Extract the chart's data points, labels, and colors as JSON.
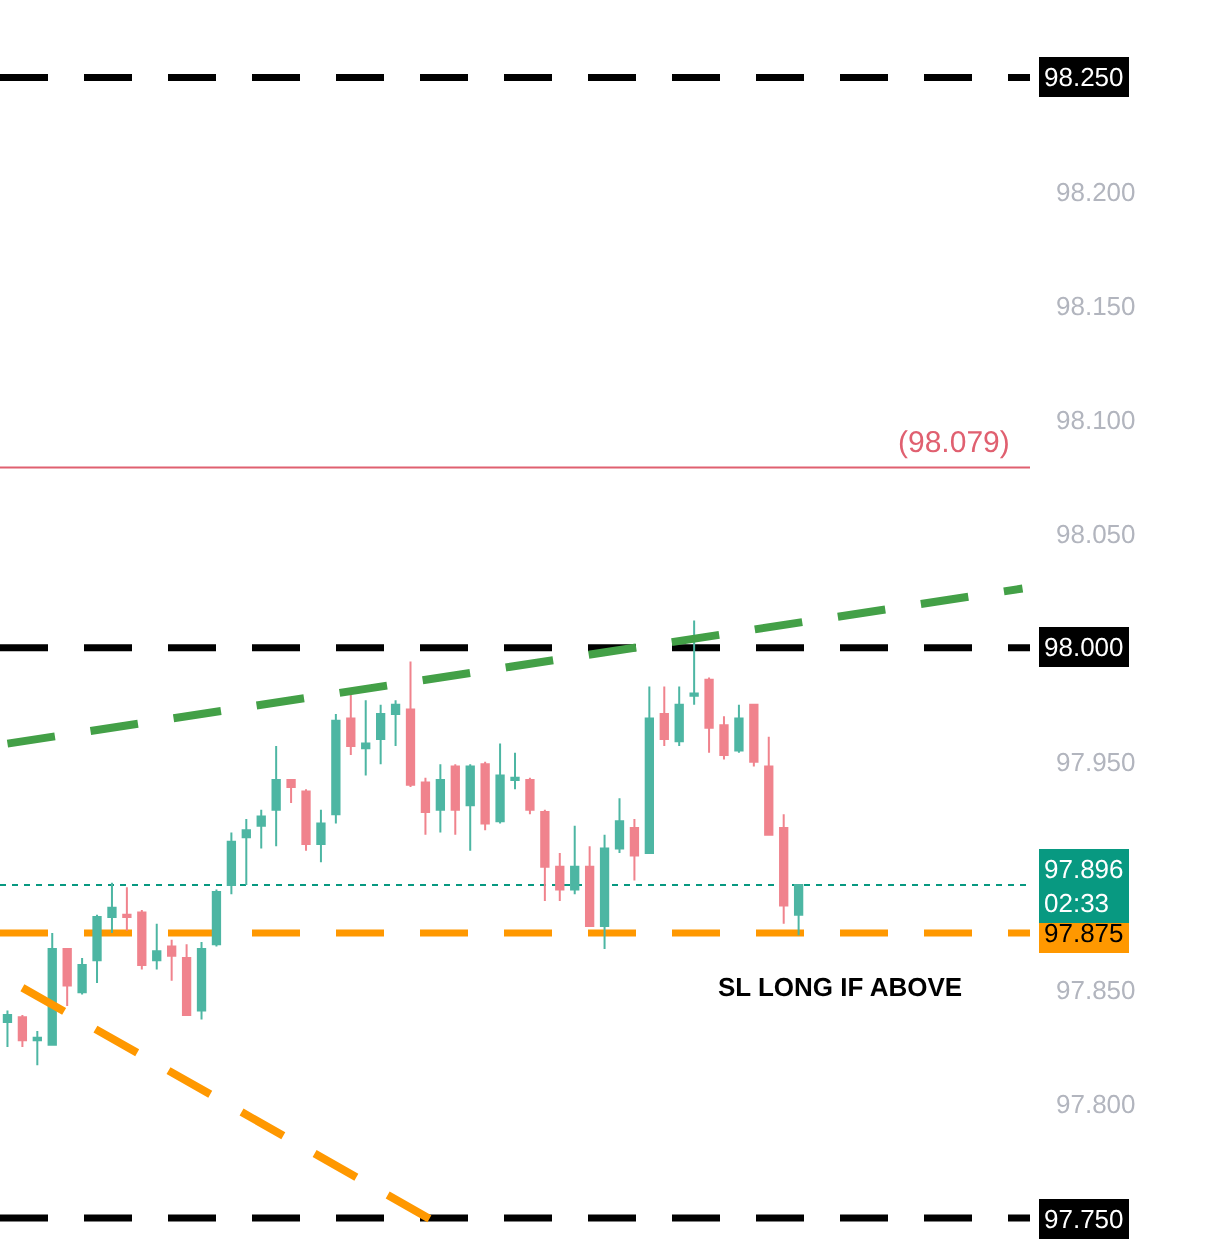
{
  "chart_data": {
    "type": "candlestick",
    "categories": [
      null,
      null,
      null,
      null,
      null,
      null,
      null,
      null,
      null,
      null,
      null,
      null,
      null,
      null,
      null,
      null,
      null,
      null,
      null,
      null,
      null,
      null,
      null,
      null,
      null,
      null,
      null,
      null,
      null,
      null,
      null,
      null,
      null,
      null,
      null,
      null,
      null,
      null,
      null,
      null,
      null,
      null,
      null,
      null,
      null,
      null,
      null,
      null,
      null,
      null,
      null,
      null,
      null,
      null,
      null,
      null,
      null,
      null,
      null,
      null,
      null,
      null,
      null,
      null,
      null,
      null,
      null,
      null,
      null
    ],
    "ohlc": [
      [
        97.836,
        97.841,
        97.825,
        97.839
      ],
      [
        97.838,
        97.839,
        97.825,
        97.828
      ],
      [
        97.828,
        97.832,
        97.817,
        97.829
      ],
      [
        97.826,
        97.875,
        97.826,
        97.868
      ],
      [
        97.868,
        97.868,
        97.843,
        97.852
      ],
      [
        97.849,
        97.864,
        97.848,
        97.861
      ],
      [
        97.863,
        97.883,
        97.853,
        97.882
      ],
      [
        97.882,
        97.897,
        97.875,
        97.886
      ],
      [
        97.883,
        97.895,
        97.876,
        97.882
      ],
      [
        97.884,
        97.885,
        97.859,
        97.861
      ],
      [
        97.863,
        97.879,
        97.859,
        97.867
      ],
      [
        97.869,
        97.872,
        97.854,
        97.865
      ],
      [
        97.864,
        97.87,
        97.839,
        97.839
      ],
      [
        97.841,
        97.871,
        97.837,
        97.868
      ],
      [
        97.87,
        97.894,
        97.869,
        97.893
      ],
      [
        97.896,
        97.919,
        97.892,
        97.915
      ],
      [
        97.917,
        97.925,
        97.896,
        97.92
      ],
      [
        97.922,
        97.929,
        97.912,
        97.926
      ],
      [
        97.929,
        97.957,
        97.913,
        97.942
      ],
      [
        97.942,
        97.942,
        97.932,
        97.939
      ],
      [
        97.937,
        97.938,
        97.911,
        97.914
      ],
      [
        97.914,
        97.929,
        97.906,
        97.923
      ],
      [
        97.927,
        97.971,
        97.923,
        97.968
      ],
      [
        97.969,
        97.982,
        97.953,
        97.957
      ],
      [
        97.956,
        97.977,
        97.944,
        97.958
      ],
      [
        97.96,
        97.975,
        97.949,
        97.971
      ],
      [
        97.971,
        97.977,
        97.957,
        97.975
      ],
      [
        97.973,
        97.994,
        97.939,
        97.94
      ],
      [
        97.941,
        97.943,
        97.918,
        97.928
      ],
      [
        97.929,
        97.949,
        97.919,
        97.942
      ],
      [
        97.948,
        97.949,
        97.918,
        97.929
      ],
      [
        97.931,
        97.949,
        97.911,
        97.948
      ],
      [
        97.949,
        97.95,
        97.92,
        97.923
      ],
      [
        97.924,
        97.958,
        97.923,
        97.944
      ],
      [
        97.942,
        97.954,
        97.938,
        97.943
      ],
      [
        97.942,
        97.943,
        97.927,
        97.929
      ],
      [
        97.928,
        97.929,
        97.889,
        97.904
      ],
      [
        97.904,
        97.91,
        97.889,
        97.894
      ],
      [
        97.894,
        97.922,
        97.892,
        97.904
      ],
      [
        97.904,
        97.913,
        97.878,
        97.878
      ],
      [
        97.878,
        97.918,
        97.868,
        97.912
      ],
      [
        97.912,
        97.934,
        97.91,
        97.924
      ],
      [
        97.921,
        97.925,
        97.898,
        97.909
      ],
      [
        97.91,
        97.983,
        97.91,
        97.969
      ],
      [
        97.971,
        97.983,
        97.957,
        97.96
      ],
      [
        97.959,
        97.983,
        97.957,
        97.975
      ],
      [
        97.979,
        98.012,
        97.975,
        97.98
      ],
      [
        97.986,
        97.987,
        97.954,
        97.965
      ],
      [
        97.966,
        97.97,
        97.951,
        97.953
      ],
      [
        97.955,
        97.975,
        97.954,
        97.969
      ],
      [
        97.975,
        97.975,
        97.948,
        97.95
      ],
      [
        97.948,
        97.961,
        97.918,
        97.918
      ],
      [
        97.921,
        97.927,
        97.879,
        97.887
      ],
      [
        97.883,
        97.896,
        97.874,
        97.896
      ],
      null,
      null,
      null,
      null,
      null,
      null,
      null,
      null,
      null,
      null,
      null,
      null,
      null,
      null,
      null
    ],
    "colors": [
      "#4db6a3",
      "#f0838d",
      "#4db6a3",
      "#4db6a3",
      "#f0838d",
      "#4db6a3",
      "#4db6a3",
      "#4db6a3",
      "#f0838d",
      "#f0838d",
      "#4db6a3",
      "#f0838d",
      "#f0838d",
      "#4db6a3",
      "#4db6a3",
      "#4db6a3",
      "#4db6a3",
      "#4db6a3",
      "#4db6a3",
      "#f0838d",
      "#f0838d",
      "#4db6a3",
      "#4db6a3",
      "#f0838d",
      "#4db6a3",
      "#4db6a3",
      "#4db6a3",
      "#f0838d",
      "#f0838d",
      "#4db6a3",
      "#f0838d",
      "#4db6a3",
      "#f0838d",
      "#4db6a3",
      "#4db6a3",
      "#f0838d",
      "#f0838d",
      "#f0838d",
      "#4db6a3",
      "#f0838d",
      "#4db6a3",
      "#4db6a3",
      "#f0838d",
      "#4db6a3",
      "#f0838d",
      "#4db6a3",
      "#4db6a3",
      "#f0838d",
      "#f0838d",
      "#4db6a3",
      "#f0838d",
      "#f0838d",
      "#f0838d",
      "#4db6a3",
      null,
      null,
      null,
      null,
      null,
      null,
      null,
      null,
      null,
      null,
      null,
      null,
      null,
      null,
      null
    ],
    "series": [
      {
        "type": "line",
        "values": [
          97.958,
          null,
          null,
          null,
          null,
          null,
          null,
          null,
          null,
          null,
          null,
          null,
          null,
          null,
          null,
          null,
          null,
          null,
          null,
          null,
          null,
          null,
          null,
          null,
          null,
          null,
          null,
          null,
          null,
          null,
          null,
          null,
          null,
          null,
          null,
          null,
          null,
          null,
          null,
          null,
          null,
          null,
          null,
          null,
          null,
          null,
          null,
          null,
          null,
          null,
          null,
          null,
          null,
          null,
          null,
          null,
          null,
          null,
          null,
          null,
          null,
          null,
          null,
          null,
          null,
          null,
          null,
          null,
          98.026
        ],
        "color": "#43a047",
        "line_style": "dashed"
      },
      {
        "type": "line",
        "values": [
          null,
          97.851,
          null,
          null,
          null,
          null,
          null,
          null,
          null,
          null,
          null,
          null,
          null,
          null,
          null,
          null,
          null,
          null,
          null,
          null,
          null,
          null,
          null,
          null,
          null,
          null,
          null,
          null,
          null,
          97.747,
          null,
          null,
          null,
          null,
          null,
          null,
          null,
          null,
          null,
          null,
          null,
          null,
          null,
          null,
          null,
          null,
          null,
          null,
          null,
          null,
          null,
          null,
          null,
          null,
          null,
          null,
          null,
          null,
          null,
          null,
          null,
          null,
          null,
          null,
          null,
          null,
          null,
          null,
          null
        ],
        "color": "#ff9800",
        "line_style": "dashed"
      }
    ],
    "ref_lines": [
      {
        "axis": "y",
        "value": 98.25,
        "label": "98.250",
        "color": "#000000",
        "line_style": "dashed"
      },
      {
        "axis": "y",
        "value": 98.0,
        "label": "98.000",
        "color": "#000000",
        "line_style": "dashed"
      },
      {
        "axis": "y",
        "value": 97.75,
        "label": "97.750",
        "color": "#000000",
        "line_style": "dashed"
      },
      {
        "axis": "y",
        "value": 97.875,
        "label": "97.875",
        "color": "#ff9800",
        "line_style": "dashed"
      },
      {
        "axis": "y",
        "value": 98.079,
        "label": "(98.079)",
        "color": "#e06070",
        "line_style": "solid"
      },
      {
        "axis": "y",
        "value": 97.896,
        "label": "97.896\n02:33",
        "color": "#089981",
        "line_style": "dotted"
      }
    ],
    "annotations": [
      "SL LONG IF ABOVE"
    ],
    "ylim": [
      97.736,
      98.284
    ],
    "yticks": [
      {
        "value": 98.25,
        "label": null
      },
      {
        "value": 98.2,
        "label": "98.200"
      },
      {
        "value": 98.15,
        "label": "98.150"
      },
      {
        "value": 98.1,
        "label": "98.100"
      },
      {
        "value": 98.05,
        "label": "98.050"
      },
      {
        "value": 98.0,
        "label": null
      },
      {
        "value": 97.95,
        "label": "97.950"
      },
      {
        "value": 97.85,
        "label": "97.850"
      },
      {
        "value": 97.8,
        "label": "97.800"
      },
      {
        "value": 97.75,
        "label": null
      }
    ],
    "tick_labels": "y",
    "grid": false
  }
}
